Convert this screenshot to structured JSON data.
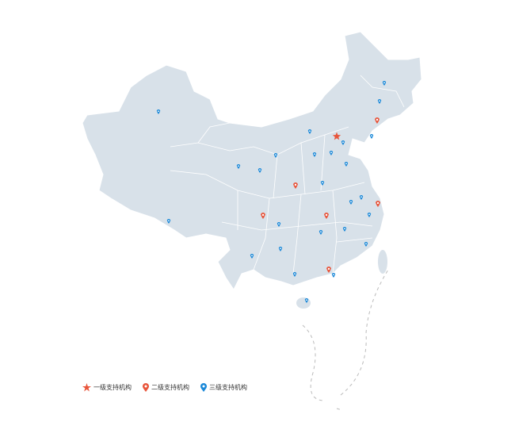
{
  "colors": {
    "land": "#d8e1e9",
    "border": "#ffffff",
    "level1": "#e8553b",
    "level2": "#e8553b",
    "level3": "#1a88d8",
    "dash": "#bbbbbb"
  },
  "legend": [
    {
      "label": "一级支持机构",
      "icon": "star-icon"
    },
    {
      "label": "二级支持机构",
      "icon": "map-pin-icon"
    },
    {
      "label": "三级支持机构",
      "icon": "map-pin-icon"
    }
  ]
}
